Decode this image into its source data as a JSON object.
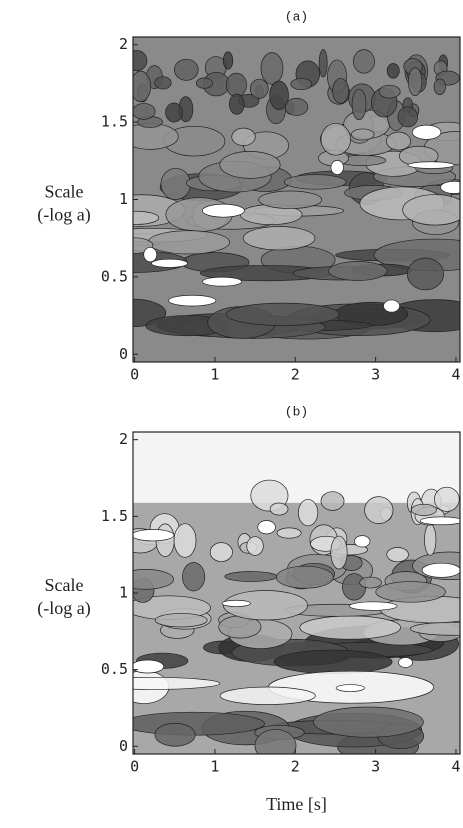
{
  "chart_data": [
    {
      "type": "contour",
      "title": "(a)",
      "ylabel": [
        "Scale",
        "(-log a)"
      ],
      "xlim": [
        -0.02,
        4.05
      ],
      "ylim": [
        -0.05,
        2.05
      ],
      "xticks": [
        0,
        1,
        2,
        3,
        4
      ],
      "yticks": [
        0,
        0.5,
        1,
        1.5,
        2
      ]
    },
    {
      "type": "contour",
      "title": "(b)",
      "ylabel": [
        "Scale",
        "(-log a)"
      ],
      "xlabel": "Time [s]",
      "xlim": [
        -0.02,
        4.05
      ],
      "ylim": [
        -0.05,
        2.05
      ],
      "xticks": [
        0,
        1,
        2,
        3,
        4
      ],
      "yticks": [
        0,
        0.5,
        1,
        1.5,
        2
      ]
    }
  ]
}
